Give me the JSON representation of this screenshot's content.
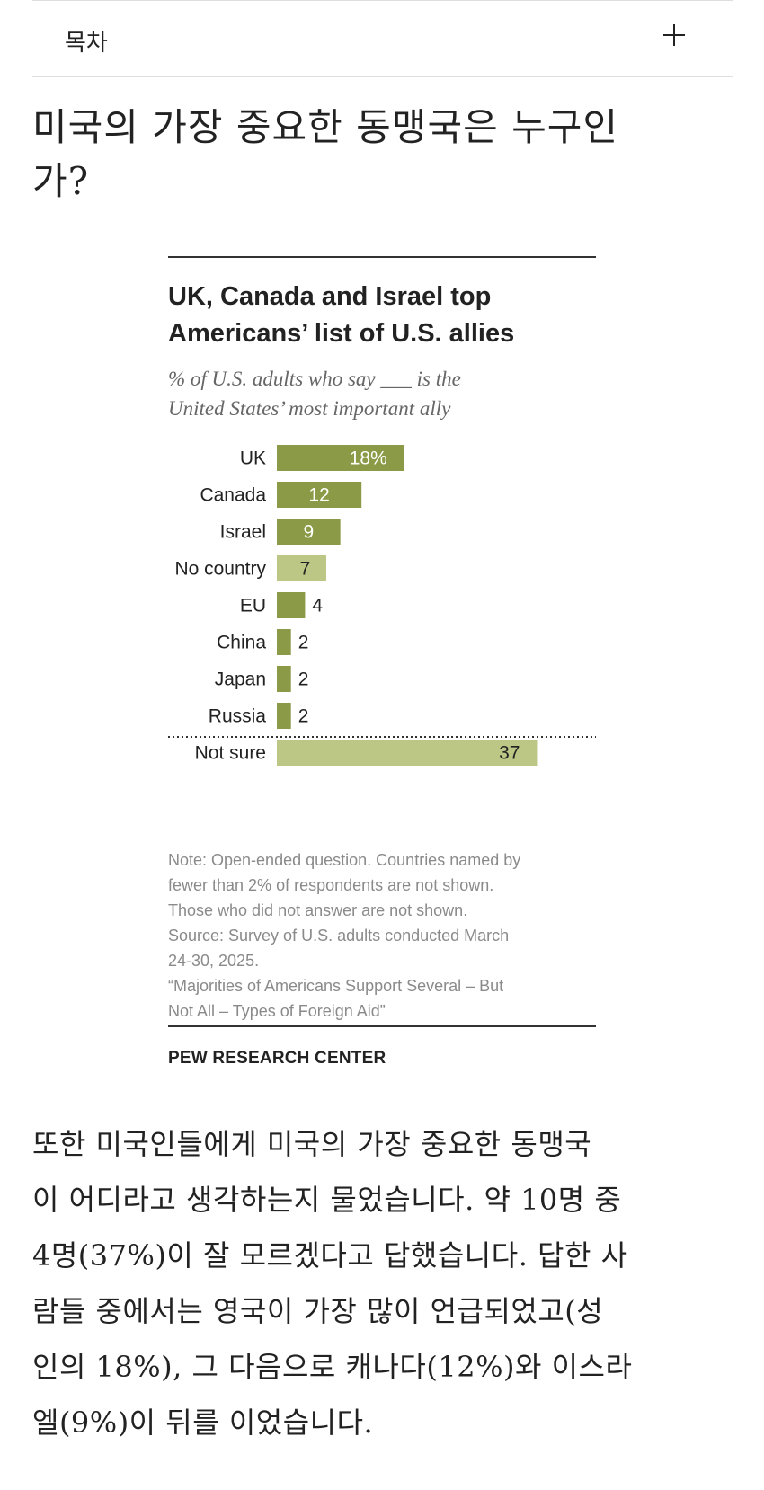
{
  "toc": {
    "label": "목차",
    "toggle_icon": "plus-icon"
  },
  "heading": {
    "lines": [
      "미국의 가장 중요한 동맹국은 누구인",
      "가?"
    ]
  },
  "figure": {
    "title_lines": [
      "UK, Canada and Israel top",
      "Americans’ list of U.S. allies"
    ],
    "subtitle_lines": [
      "% of U.S. adults who say ___ is the",
      "United States’ most important ally"
    ],
    "notes": [
      "Note: Open-ended question. Countries named by",
      "fewer than 2% of respondents are not shown.",
      "Those who did not answer are not shown.",
      "Source: Survey of U.S. adults conducted March",
      "24-30, 2025.",
      "“Majorities of Americans Support Several – But",
      "Not All – Types of Foreign Aid”"
    ],
    "source_org": "PEW RESEARCH CENTER"
  },
  "chart_data": {
    "type": "bar",
    "orientation": "horizontal",
    "title": "UK, Canada and Israel top Americans’ list of U.S. allies",
    "subtitle": "% of U.S. adults who say ___ is the United States’ most important ally",
    "categories": [
      "UK",
      "Canada",
      "Israel",
      "No country",
      "EU",
      "China",
      "Japan",
      "Russia",
      "Not sure"
    ],
    "values": [
      18,
      12,
      9,
      7,
      4,
      2,
      2,
      2,
      37
    ],
    "value_labels": [
      "18%",
      "12",
      "9",
      "7",
      "4",
      "2",
      "2",
      "2",
      "37"
    ],
    "colors": {
      "country": "#8b9a46",
      "other": "#bcc685",
      "country_label": "#ffffff",
      "other_label": "#222222"
    },
    "bar_color_keys": [
      "country",
      "country",
      "country",
      "other",
      "country",
      "country",
      "country",
      "country",
      "other"
    ],
    "separator_before": "Not sure",
    "xlim": [
      0,
      37
    ],
    "grid": false,
    "legend": "none"
  },
  "body": {
    "lines": [
      "또한 미국인들에게 미국의 가장 중요한 동맹국",
      "이 어디라고 생각하는지 물었습니다. 약 10명 중",
      "4명(37%)이 잘 모르겠다고 답했습니다. 답한 사",
      "람들 중에서는 영국이 가장 많이 언급되었고(성",
      "인의 18%), 그 다음으로 캐나다(12%)와 이스라",
      "엘(9%)이 뒤를 이었습니다."
    ]
  }
}
